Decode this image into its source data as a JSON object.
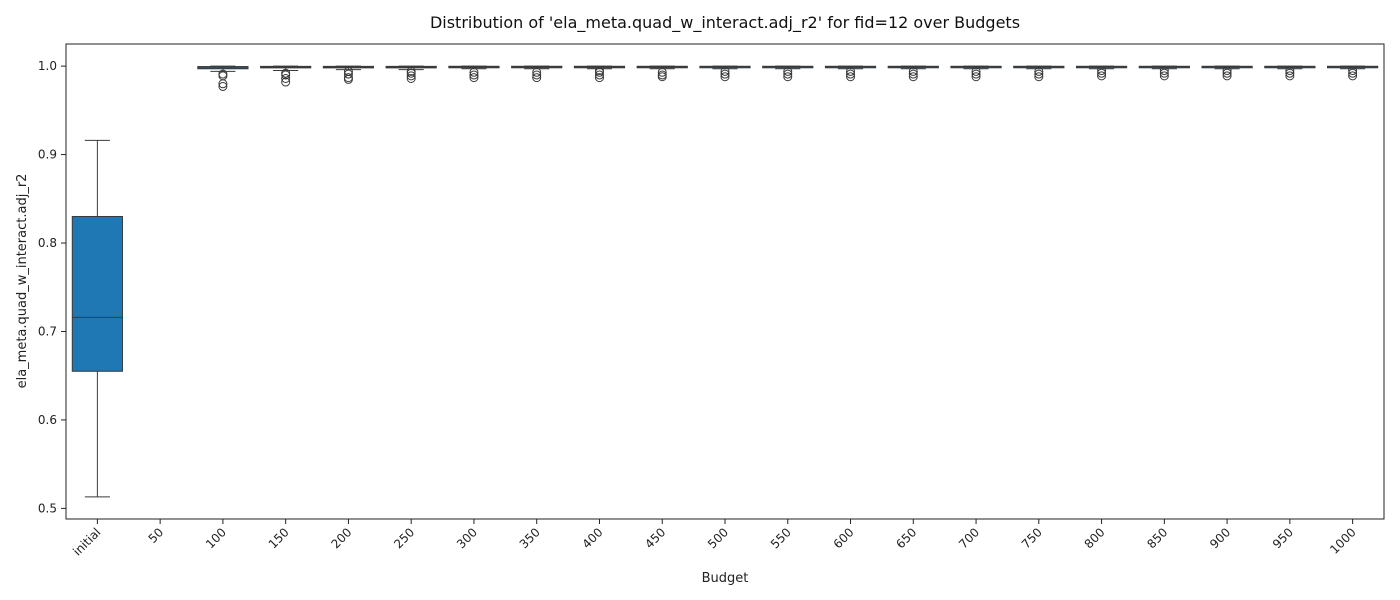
{
  "chart_data": {
    "type": "box",
    "title": "Distribution of 'ela_meta.quad_w_interact.adj_r2' for fid=12 over Budgets",
    "xlabel": "Budget",
    "ylabel": "ela_meta.quad_w_interact.adj_r2",
    "ylim": [
      0.488,
      1.025
    ],
    "yticks": [
      "0.5",
      "0.6",
      "0.7",
      "0.8",
      "0.9",
      "1.0"
    ],
    "grid": false,
    "color": "#1f77b4",
    "categories": [
      "initial",
      "50",
      "100",
      "150",
      "200",
      "250",
      "300",
      "350",
      "400",
      "450",
      "500",
      "550",
      "600",
      "650",
      "700",
      "750",
      "800",
      "850",
      "900",
      "950",
      "1000"
    ],
    "boxes": [
      {
        "category": "initial",
        "whisker_low": 0.513,
        "q1": 0.655,
        "median": 0.716,
        "q3": 0.83,
        "whisker_high": 0.916,
        "outliers": []
      },
      {
        "category": "50",
        "empty": true
      },
      {
        "category": "100",
        "whisker_low": 0.994,
        "q1": 0.997,
        "median": 0.998,
        "q3": 0.9995,
        "whisker_high": 1.0,
        "outliers": [
          0.977,
          0.98,
          0.989,
          0.991
        ]
      },
      {
        "category": "150",
        "whisker_low": 0.995,
        "q1": 0.998,
        "median": 0.999,
        "q3": 0.9997,
        "whisker_high": 1.0,
        "outliers": [
          0.982,
          0.986,
          0.99,
          0.992
        ]
      },
      {
        "category": "200",
        "whisker_low": 0.996,
        "q1": 0.998,
        "median": 0.999,
        "q3": 0.9997,
        "whisker_high": 1.0,
        "outliers": [
          0.985,
          0.987,
          0.991,
          0.994
        ]
      },
      {
        "category": "250",
        "whisker_low": 0.996,
        "q1": 0.998,
        "median": 0.999,
        "q3": 0.9997,
        "whisker_high": 1.0,
        "outliers": [
          0.986,
          0.989,
          0.992,
          0.994
        ]
      },
      {
        "category": "300",
        "whisker_low": 0.997,
        "q1": 0.9985,
        "median": 0.9992,
        "q3": 0.9998,
        "whisker_high": 1.0,
        "outliers": [
          0.987,
          0.99,
          0.993
        ]
      },
      {
        "category": "350",
        "whisker_low": 0.997,
        "q1": 0.9985,
        "median": 0.9992,
        "q3": 0.9998,
        "whisker_high": 1.0,
        "outliers": [
          0.987,
          0.99,
          0.993
        ]
      },
      {
        "category": "400",
        "whisker_low": 0.997,
        "q1": 0.9985,
        "median": 0.9992,
        "q3": 0.9998,
        "whisker_high": 1.0,
        "outliers": [
          0.987,
          0.99,
          0.993,
          0.995
        ]
      },
      {
        "category": "450",
        "whisker_low": 0.997,
        "q1": 0.9985,
        "median": 0.9992,
        "q3": 0.9998,
        "whisker_high": 1.0,
        "outliers": [
          0.988,
          0.99,
          0.993
        ]
      },
      {
        "category": "500",
        "whisker_low": 0.997,
        "q1": 0.9985,
        "median": 0.9993,
        "q3": 0.9998,
        "whisker_high": 1.0,
        "outliers": [
          0.988,
          0.991,
          0.994
        ]
      },
      {
        "category": "550",
        "whisker_low": 0.997,
        "q1": 0.9985,
        "median": 0.9993,
        "q3": 0.9998,
        "whisker_high": 1.0,
        "outliers": [
          0.988,
          0.991,
          0.994
        ]
      },
      {
        "category": "600",
        "whisker_low": 0.997,
        "q1": 0.9985,
        "median": 0.9993,
        "q3": 0.9998,
        "whisker_high": 1.0,
        "outliers": [
          0.988,
          0.991,
          0.994
        ]
      },
      {
        "category": "650",
        "whisker_low": 0.997,
        "q1": 0.9985,
        "median": 0.9993,
        "q3": 0.9998,
        "whisker_high": 1.0,
        "outliers": [
          0.988,
          0.991,
          0.994
        ]
      },
      {
        "category": "700",
        "whisker_low": 0.997,
        "q1": 0.9985,
        "median": 0.9993,
        "q3": 0.9998,
        "whisker_high": 1.0,
        "outliers": [
          0.988,
          0.991,
          0.994
        ]
      },
      {
        "category": "750",
        "whisker_low": 0.997,
        "q1": 0.9985,
        "median": 0.9993,
        "q3": 0.9998,
        "whisker_high": 1.0,
        "outliers": [
          0.988,
          0.991,
          0.994
        ]
      },
      {
        "category": "800",
        "whisker_low": 0.997,
        "q1": 0.9985,
        "median": 0.9993,
        "q3": 0.9998,
        "whisker_high": 1.0,
        "outliers": [
          0.989,
          0.992,
          0.995
        ]
      },
      {
        "category": "850",
        "whisker_low": 0.997,
        "q1": 0.9985,
        "median": 0.9993,
        "q3": 0.9998,
        "whisker_high": 1.0,
        "outliers": [
          0.989,
          0.992,
          0.995
        ]
      },
      {
        "category": "900",
        "whisker_low": 0.997,
        "q1": 0.9985,
        "median": 0.9993,
        "q3": 0.9998,
        "whisker_high": 1.0,
        "outliers": [
          0.989,
          0.992,
          0.995
        ]
      },
      {
        "category": "950",
        "whisker_low": 0.997,
        "q1": 0.9985,
        "median": 0.9993,
        "q3": 0.9998,
        "whisker_high": 1.0,
        "outliers": [
          0.989,
          0.992,
          0.995
        ]
      },
      {
        "category": "1000",
        "whisker_low": 0.997,
        "q1": 0.9985,
        "median": 0.9993,
        "q3": 0.9998,
        "whisker_high": 1.0,
        "outliers": [
          0.989,
          0.992,
          0.995
        ]
      }
    ]
  }
}
